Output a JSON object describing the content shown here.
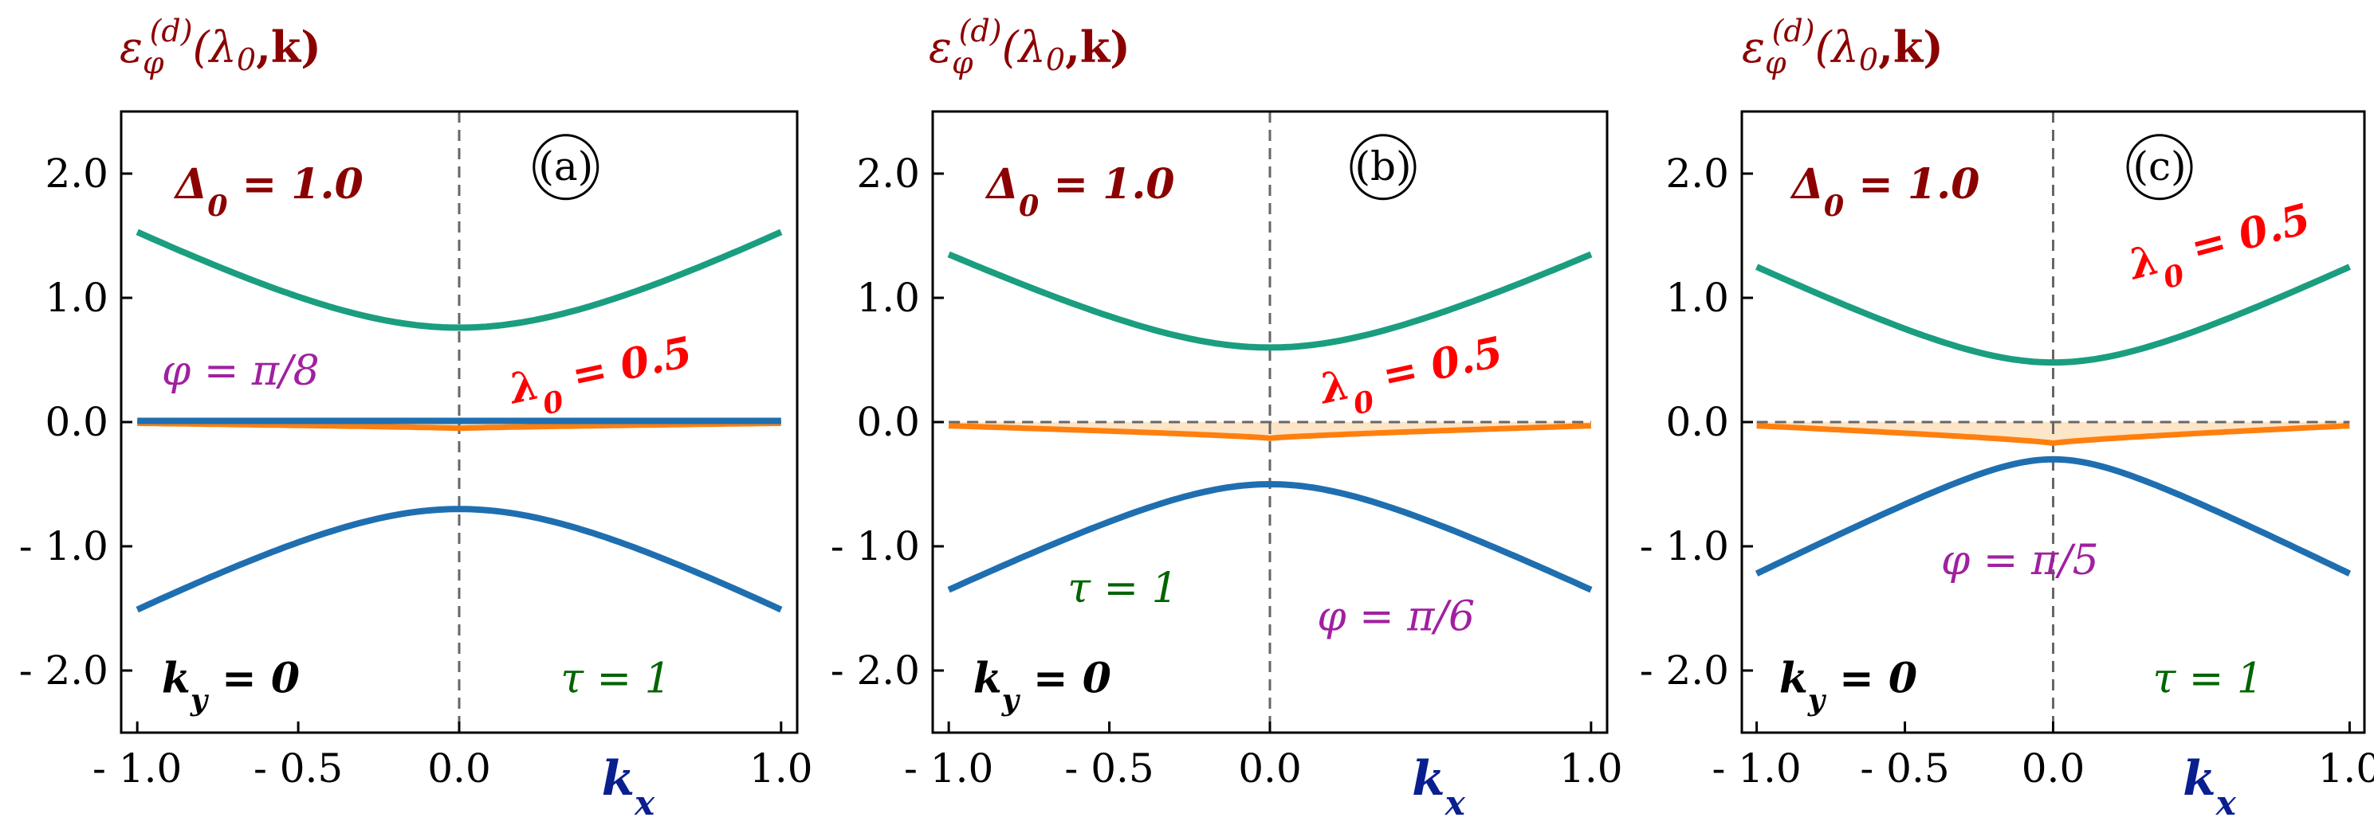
{
  "colors": {
    "upper": "#1a9e7f",
    "lower": "#1f6fb0",
    "flat": "#ff7f0e",
    "fill": "#fde0bd",
    "delta": "#8b0000",
    "lambda": "#ff0000",
    "phi": "#a020a0",
    "tau": "#006400",
    "ky": "#000000",
    "axis_label": "#8b0000",
    "xlabel": "#0a1f8f"
  },
  "chart_data": [
    {
      "type": "line",
      "panel_label": "(a)",
      "ylabel": "εφ(d)(λ0,k)",
      "xlabel": "kx",
      "xlim": [
        -1.05,
        1.05
      ],
      "ylim": [
        -2.5,
        2.5
      ],
      "xticks": [
        "- 1.0",
        "- 0.5",
        "0.0",
        "1.0"
      ],
      "xtick_values": [
        -1.0,
        -0.5,
        0.0,
        1.0
      ],
      "yticks": [
        "2.0",
        "1.0",
        "0.0",
        "- 1.0",
        "- 2.0"
      ],
      "ytick_values": [
        2.0,
        1.0,
        0.0,
        -1.0,
        -2.0
      ],
      "annotations": {
        "delta": "Δ0 = 1.0",
        "lambda": "λ0 = 0.5",
        "phi": "φ = π/8",
        "tau": "τ = 1",
        "ky": "ky = 0"
      },
      "bands": {
        "upper_min": 0.76,
        "upper_edge": 1.53,
        "lower_max": -0.7,
        "lower_edge": -1.51,
        "flat_min": -0.05,
        "flat_edge": -0.01
      }
    },
    {
      "type": "line",
      "panel_label": "(b)",
      "ylabel": "εφ(d)(λ0,k)",
      "xlabel": "kx",
      "xlim": [
        -1.05,
        1.05
      ],
      "ylim": [
        -2.5,
        2.5
      ],
      "xticks": [
        "- 1.0",
        "- 0.5",
        "0.0",
        "1.0"
      ],
      "xtick_values": [
        -1.0,
        -0.5,
        0.0,
        1.0
      ],
      "yticks": [
        "2.0",
        "1.0",
        "0.0",
        "- 1.0",
        "- 2.0"
      ],
      "ytick_values": [
        2.0,
        1.0,
        0.0,
        -1.0,
        -2.0
      ],
      "annotations": {
        "delta": "Δ0 = 1.0",
        "lambda": "λ0 = 0.5",
        "phi": "φ = π/6",
        "tau": "τ = 1",
        "ky": "ky = 0"
      },
      "bands": {
        "upper_min": 0.6,
        "upper_edge": 1.35,
        "lower_max": -0.5,
        "lower_edge": -1.35,
        "flat_min": -0.13,
        "flat_edge": -0.03
      }
    },
    {
      "type": "line",
      "panel_label": "(c)",
      "ylabel": "εφ(d)(λ0,k)",
      "xlabel": "kx",
      "xlim": [
        -1.05,
        1.05
      ],
      "ylim": [
        -2.5,
        2.5
      ],
      "xticks": [
        "- 1.0",
        "- 0.5",
        "0.0",
        "1.0"
      ],
      "xtick_values": [
        -1.0,
        -0.5,
        0.0,
        1.0
      ],
      "yticks": [
        "2.0",
        "1.0",
        "0.0",
        "- 1.0",
        "- 2.0"
      ],
      "ytick_values": [
        2.0,
        1.0,
        0.0,
        -1.0,
        -2.0
      ],
      "annotations": {
        "delta": "Δ0 = 1.0",
        "lambda": "λ0 = 0.5",
        "phi": "φ = π/5",
        "tau": "τ = 1",
        "ky": "ky = 0"
      },
      "bands": {
        "upper_min": 0.48,
        "upper_edge": 1.25,
        "lower_max": -0.3,
        "lower_edge": -1.22,
        "flat_min": -0.17,
        "flat_edge": -0.03
      }
    }
  ]
}
